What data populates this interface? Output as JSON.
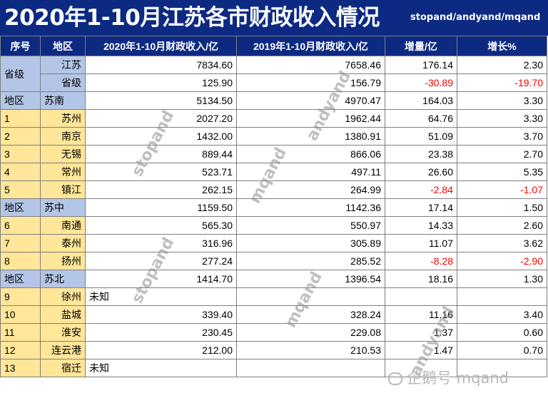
{
  "title": "2020年1-10月江苏各市财政收入情况",
  "credit": "stopand/andyand/mqand",
  "headers": [
    "序号",
    "地区",
    "2020年1-10月财政收入/亿",
    "2019年1-10月财政收入/亿",
    "增量/亿",
    "增长%"
  ],
  "rows": [
    {
      "seq": "省级",
      "region": "江苏",
      "v2020": "7834.60",
      "v2019": "7658.46",
      "inc": "176.14",
      "growth": "2.30"
    },
    {
      "region": "省级",
      "v2020": "125.90",
      "v2019": "156.79",
      "inc": "-30.89",
      "growth": "-19.70"
    },
    {
      "seq": "地区",
      "region": "苏南",
      "v2020": "5134.50",
      "v2019": "4970.47",
      "inc": "164.03",
      "growth": "3.30"
    },
    {
      "seq": "1",
      "region": "苏州",
      "v2020": "2027.20",
      "v2019": "1962.44",
      "inc": "64.76",
      "growth": "3.30"
    },
    {
      "seq": "2",
      "region": "南京",
      "v2020": "1432.00",
      "v2019": "1380.91",
      "inc": "51.09",
      "growth": "3.70"
    },
    {
      "seq": "3",
      "region": "无锡",
      "v2020": "889.44",
      "v2019": "866.06",
      "inc": "23.38",
      "growth": "2.70"
    },
    {
      "seq": "4",
      "region": "常州",
      "v2020": "523.71",
      "v2019": "497.11",
      "inc": "26.60",
      "growth": "5.35"
    },
    {
      "seq": "5",
      "region": "镇江",
      "v2020": "262.15",
      "v2019": "264.99",
      "inc": "-2.84",
      "growth": "-1.07"
    },
    {
      "seq": "地区",
      "region": "苏中",
      "v2020": "1159.50",
      "v2019": "1142.36",
      "inc": "17.14",
      "growth": "1.50"
    },
    {
      "seq": "6",
      "region": "南通",
      "v2020": "565.30",
      "v2019": "550.97",
      "inc": "14.33",
      "growth": "2.60"
    },
    {
      "seq": "7",
      "region": "泰州",
      "v2020": "316.96",
      "v2019": "305.89",
      "inc": "11.07",
      "growth": "3.62"
    },
    {
      "seq": "8",
      "region": "扬州",
      "v2020": "277.24",
      "v2019": "285.52",
      "inc": "-8.28",
      "growth": "-2.90"
    },
    {
      "seq": "地区",
      "region": "苏北",
      "v2020": "1414.70",
      "v2019": "1396.54",
      "inc": "18.16",
      "growth": "1.30"
    },
    {
      "seq": "9",
      "region": "徐州",
      "v2020": "未知",
      "v2019": "",
      "inc": "",
      "growth": ""
    },
    {
      "seq": "10",
      "region": "盐城",
      "v2020": "339.40",
      "v2019": "328.24",
      "inc": "11.16",
      "growth": "3.40"
    },
    {
      "seq": "11",
      "region": "淮安",
      "v2020": "230.45",
      "v2019": "229.08",
      "inc": "1.37",
      "growth": "0.60"
    },
    {
      "seq": "12",
      "region": "连云港",
      "v2020": "212.00",
      "v2019": "210.53",
      "inc": "1.47",
      "growth": "0.70"
    },
    {
      "seq": "13",
      "region": "宿迁",
      "v2020": "未知",
      "v2019": "",
      "inc": "",
      "growth": ""
    }
  ],
  "watermarks": [
    "stopand",
    "andyand",
    "mqand",
    "stopand",
    "mqand",
    "andyand"
  ],
  "corner_watermark": "企鹅号 mqand",
  "colors": {
    "header_bg": "#0d2a82",
    "region_blue": "#b4c6e7",
    "city_yellow": "#ffe699",
    "negative": "#ff0000"
  }
}
